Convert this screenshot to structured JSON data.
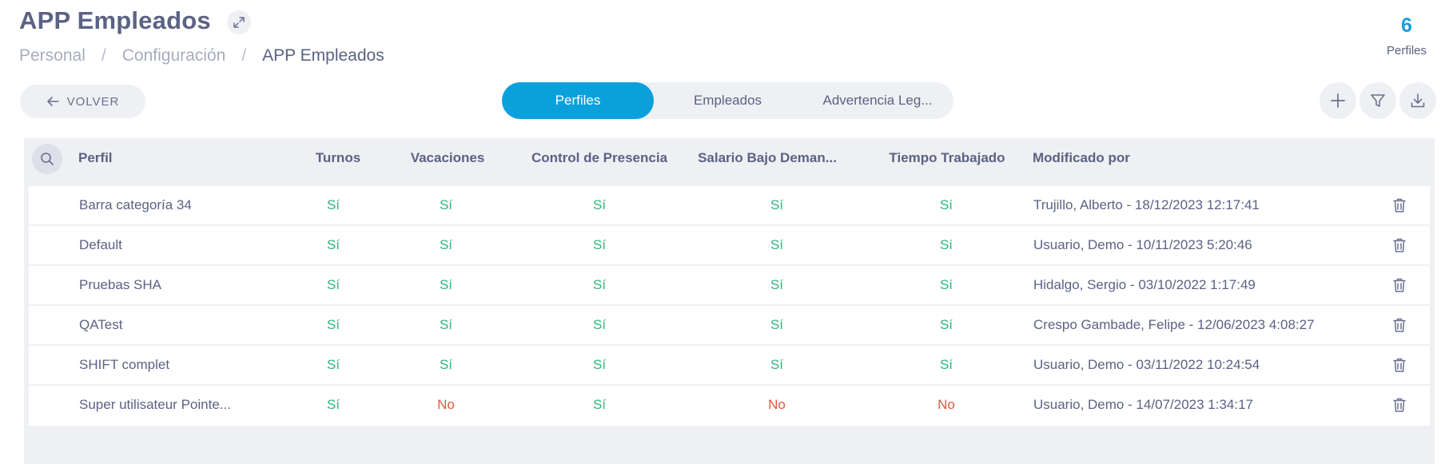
{
  "page": {
    "title": "APP Empleados",
    "breadcrumb": [
      "Personal",
      "Configuración",
      "APP Empleados"
    ],
    "counter": {
      "value": "6",
      "label": "Perfiles"
    }
  },
  "toolbar": {
    "back_label": "VOLVER",
    "tabs": [
      {
        "label": "Perfiles",
        "active": true
      },
      {
        "label": "Empleados",
        "active": false
      },
      {
        "label": "Advertencia Leg...",
        "active": false
      }
    ]
  },
  "table": {
    "columns": [
      "Perfil",
      "Turnos",
      "Vacaciones",
      "Control de Presencia",
      "Salario Bajo Deman...",
      "Tiempo Trabajado",
      "Modificado por"
    ],
    "rows": [
      {
        "perfil": "Barra categoría 34",
        "turnos": "Sí",
        "vacaciones": "Sí",
        "control": "Sí",
        "salario": "Sí",
        "tiempo": "Sí",
        "modificado": "Trujillo, Alberto - 18/12/2023 12:17:41"
      },
      {
        "perfil": "Default",
        "turnos": "Sí",
        "vacaciones": "Sí",
        "control": "Sí",
        "salario": "Sí",
        "tiempo": "Sí",
        "modificado": "Usuario, Demo - 10/11/2023 5:20:46"
      },
      {
        "perfil": "Pruebas SHA",
        "turnos": "Sí",
        "vacaciones": "Sí",
        "control": "Sí",
        "salario": "Sí",
        "tiempo": "Sí",
        "modificado": "Hidalgo, Sergio - 03/10/2022 1:17:49"
      },
      {
        "perfil": "QATest",
        "turnos": "Sí",
        "vacaciones": "Sí",
        "control": "Sí",
        "salario": "Sí",
        "tiempo": "Sí",
        "modificado": "Crespo Gambade, Felipe - 12/06/2023 4:08:27"
      },
      {
        "perfil": "SHIFT complet",
        "turnos": "Sí",
        "vacaciones": "Sí",
        "control": "Sí",
        "salario": "Sí",
        "tiempo": "Sí",
        "modificado": "Usuario, Demo - 03/11/2022 10:24:54"
      },
      {
        "perfil": "Super utilisateur Pointe...",
        "turnos": "Sí",
        "vacaciones": "No",
        "control": "Sí",
        "salario": "No",
        "tiempo": "No",
        "modificado": "Usuario, Demo - 14/07/2023 1:34:17"
      }
    ]
  },
  "colors": {
    "accent": "#0aa0dc",
    "yes": "#2fb37e",
    "no": "#e8553b",
    "text": "#5b6283",
    "surface": "#eef0f4"
  },
  "icons": {
    "expand": "expand-icon",
    "back": "arrow-left-icon",
    "add": "plus-icon",
    "filter": "filter-icon",
    "download": "download-icon",
    "search": "search-icon",
    "delete": "trash-icon"
  }
}
